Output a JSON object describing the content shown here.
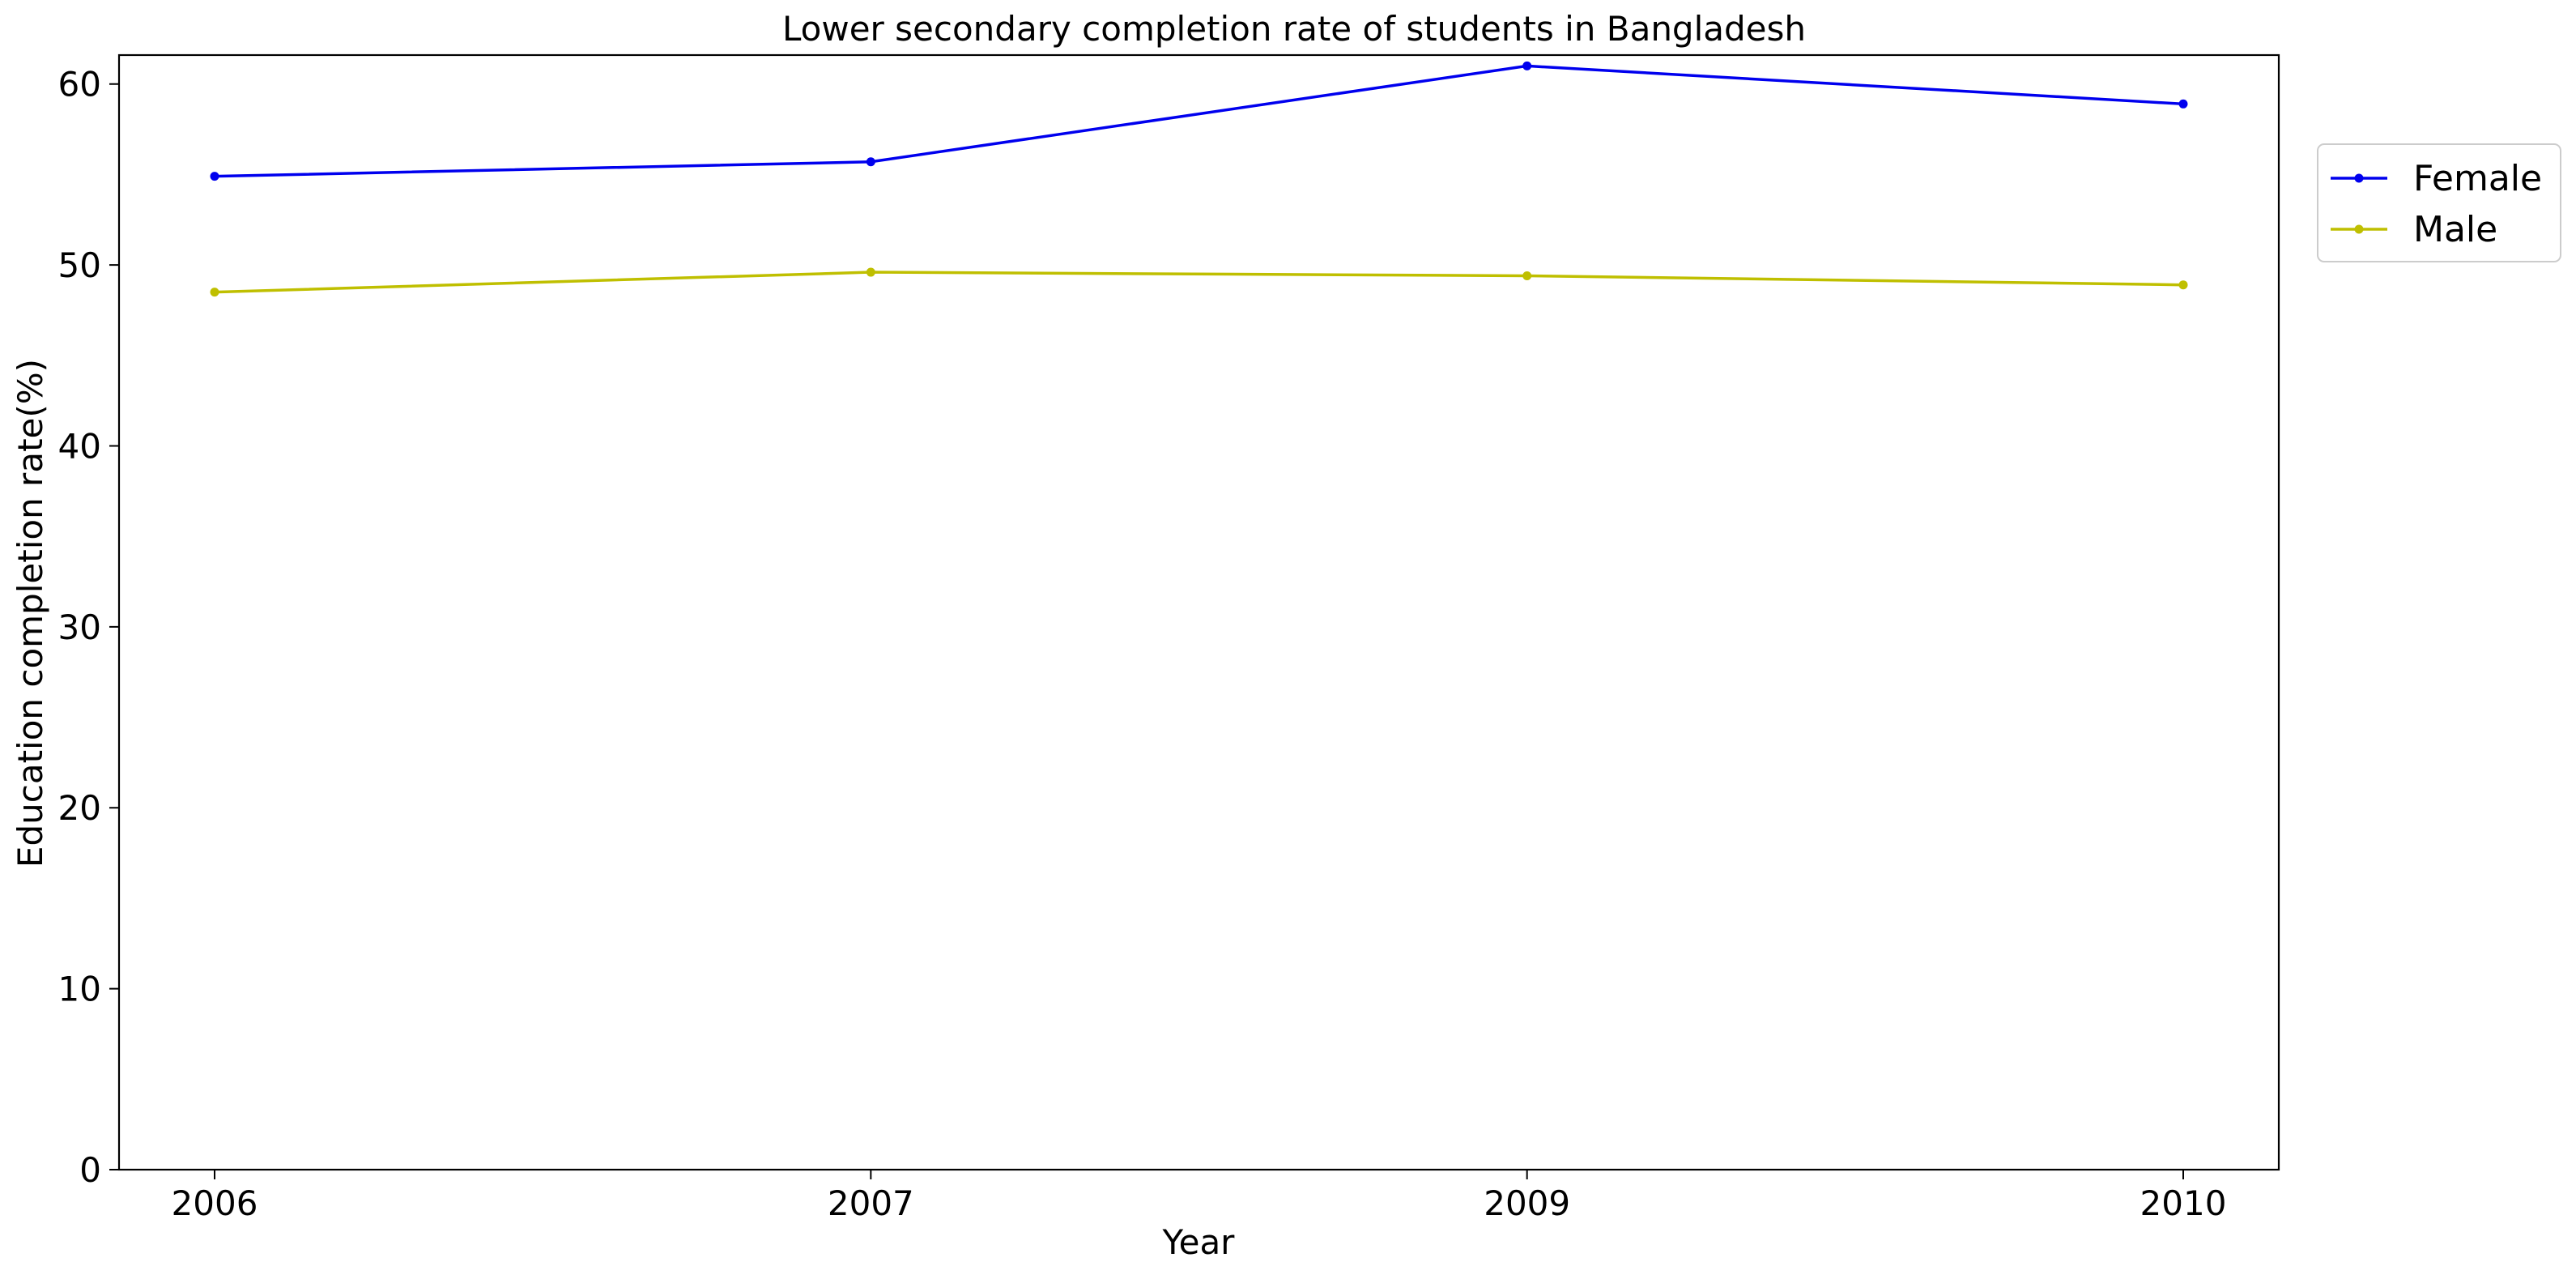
{
  "chart_data": {
    "type": "line",
    "title": "Lower secondary completion rate of students in Bangladesh",
    "xlabel": "Year",
    "ylabel": "Education completion rate(%)",
    "categories": [
      "2006",
      "2007",
      "2009",
      "2010"
    ],
    "ylim": [
      0,
      61.6
    ],
    "yticks": [
      0,
      10,
      20,
      30,
      40,
      50,
      60
    ],
    "grid": false,
    "legend_position": "top-right-outside",
    "series": [
      {
        "name": "Female",
        "color": "#0000ee",
        "values": [
          54.9,
          55.7,
          61.0,
          58.9
        ]
      },
      {
        "name": "Male",
        "color": "#bfbf00",
        "values": [
          48.5,
          49.6,
          49.4,
          48.9
        ]
      }
    ]
  }
}
